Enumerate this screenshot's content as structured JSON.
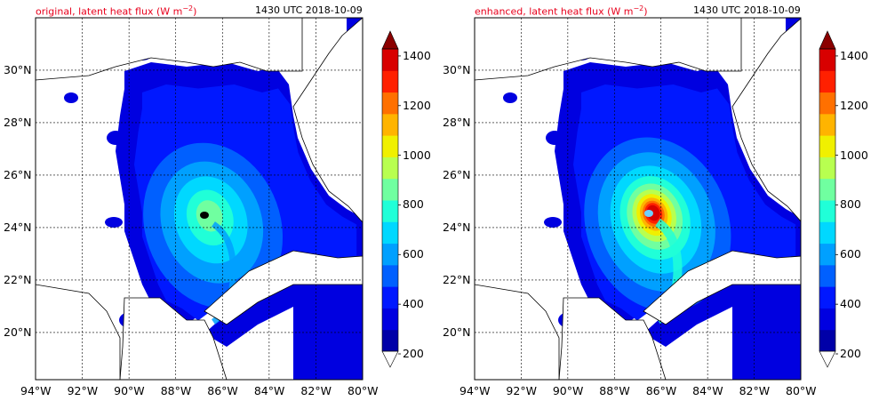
{
  "panels": [
    {
      "title_prefix": "original, latent heat flux (W m",
      "title_exp": "−2",
      "title_suffix": ")",
      "time": "1430 UTC 2018-10-09",
      "intensity": "weak"
    },
    {
      "title_prefix": "enhanced, latent heat flux (W m",
      "title_exp": "−2",
      "title_suffix": ")",
      "time": "1430 UTC 2018-10-09",
      "intensity": "strong"
    }
  ],
  "map": {
    "lon_range": [
      -94,
      -80
    ],
    "lat_range": [
      18.2,
      32.0
    ],
    "lon_ticks": [
      "94°W",
      "92°W",
      "90°W",
      "88°W",
      "86°W",
      "84°W",
      "82°W",
      "80°W"
    ],
    "lat_ticks": [
      "30°N",
      "28°N",
      "26°N",
      "24°N",
      "22°N",
      "20°N"
    ],
    "lat_tick_values": [
      30,
      28,
      26,
      24,
      22,
      20
    ],
    "lon_tick_values": [
      -94,
      -92,
      -90,
      -88,
      -86,
      -84,
      -82,
      -80
    ]
  },
  "colorbar": {
    "ticks": [
      "1400",
      "1200",
      "1000",
      "800",
      "600",
      "400",
      "200"
    ],
    "tick_values": [
      1400,
      1200,
      1000,
      800,
      600,
      400,
      200
    ],
    "range": [
      200,
      1500
    ],
    "colors": [
      "#0000a8",
      "#0000e0",
      "#0018ff",
      "#0060ff",
      "#00a0ff",
      "#00d8ff",
      "#20ffd8",
      "#70ffa0",
      "#b8ff50",
      "#f0f000",
      "#ffb400",
      "#ff7000",
      "#ff2000",
      "#d80000",
      "#a00000"
    ],
    "under_color": "#ffffff",
    "over_color": "#8b0000"
  }
}
